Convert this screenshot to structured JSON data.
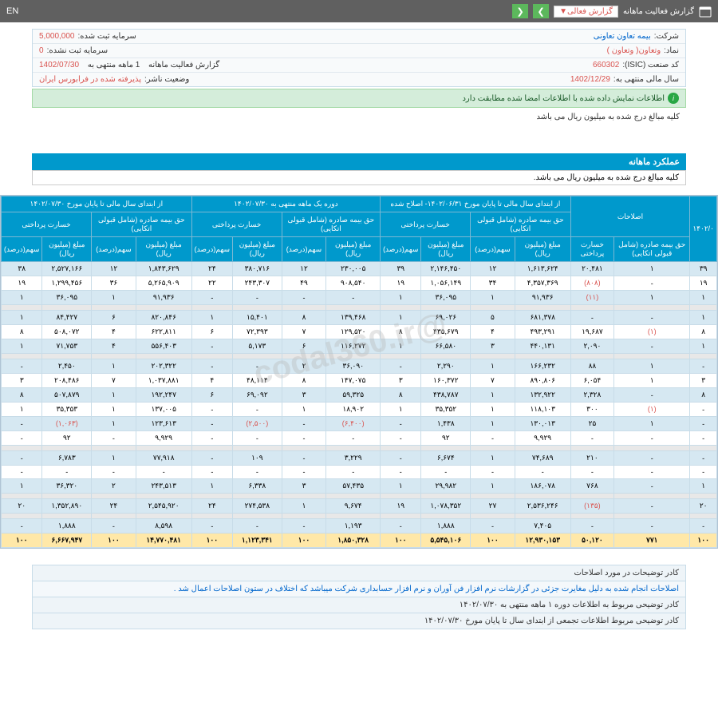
{
  "topbar": {
    "title": "گزارش فعالیت ماهانه",
    "dropdown": "گزارش فعالی▼",
    "lang": "EN"
  },
  "info": {
    "company_lbl": "شرکت:",
    "company": "بیمه تعاون تعاونی",
    "capital_reg_lbl": "سرمایه ثبت شده:",
    "capital_reg": "5,000,000",
    "symbol_lbl": "نماد:",
    "symbol": "وتعاون( وتعاون )",
    "capital_unreg_lbl": "سرمایه ثبت نشده:",
    "capital_unreg": "0",
    "isic_lbl": "کد صنعت (ISIC):",
    "isic": "660302",
    "report_lbl": "گزارش فعالیت ماهانه",
    "report_period": "1 ماهه منتهی به",
    "report_date": "1402/07/30",
    "fy_lbl": "سال مالی منتهی به:",
    "fy": "1402/12/29",
    "status_lbl": "وضعیت ناشر:",
    "status": "پذیرفته شده در فرابورس ایران"
  },
  "alert": "اطلاعات نمایش داده شده با اطلاعات امضا شده مطابقت دارد",
  "unit_note": "کلیه مبالغ درج شده به میلیون ریال می باشد",
  "section": "عملکرد ماهانه",
  "sub": "کلیه مبالغ درج شده به میلیون ریال می باشد.",
  "hdr_groups": {
    "g0": "۱۴۰۲/۰",
    "g1": "اصلاحات",
    "g2": "از ابتدای سال مالی تا پایان مورخ ۱۴۰۲/۰۶/۳۱- اصلاح شده",
    "g3": "دوره یک ماهه منتهی به ۱۴۰۲/۰۷/۳۰",
    "g4": "از ابتدای سال مالی تا پایان مورخ ۱۴۰۲/۰۷/۳۰"
  },
  "sub_hdr": {
    "h0": "اختی",
    "h1": "حق بیمه صادره (شامل قبولی اتکایی)",
    "h2": "خسارت پرداختی",
    "h3": "حق بیمه صادره (شامل قبولی اتکایی)",
    "h4": "خسارت پرداختی",
    "h5": "حق بیمه صادره (شامل قبولی اتکایی)",
    "h6": "خسارت پرداختی",
    "h7": "حق بیمه صادره (شامل قبولی اتکایی)",
    "h8": "خسارت پرداختی"
  },
  "col_hdr": {
    "pct": "سهم(درصد)",
    "amt": "مبلغ (میلیون ریال)"
  },
  "rows": [
    {
      "c": "odd",
      "v": [
        "۳۹",
        "۱",
        "۲۰,۴۸۱",
        "۱,۶۱۳,۶۲۴",
        "۱۲",
        "۲,۱۴۶,۴۵۰",
        "۳۹",
        "۲۳۰,۰۰۵",
        "۱۲",
        "۳۸۰,۷۱۶",
        "۲۴",
        "۱,۸۴۳,۶۲۹",
        "۱۲",
        "۲,۵۲۷,۱۶۶",
        "۳۸"
      ]
    },
    {
      "c": "even",
      "v": [
        "۱۹",
        "-",
        "(۸۰۸)",
        "۴,۳۵۷,۳۶۹",
        "۳۴",
        "۱,۰۵۶,۱۴۹",
        "۱۹",
        "۹۰۸,۵۴۰",
        "۴۹",
        "۲۴۳,۳۰۷",
        "۲۲",
        "۵,۲۶۵,۹۰۹",
        "۳۶",
        "۱,۲۹۹,۴۵۶",
        "۱۹"
      ]
    },
    {
      "c": "odd",
      "v": [
        "۱",
        "۱",
        "(۱۱)",
        "۹۱,۹۳۶",
        "۱",
        "۳۶,۰۹۵",
        "۱",
        "-",
        "-",
        "-",
        "-",
        "۹۱,۹۳۶",
        "۱",
        "۳۶,۰۹۵",
        "۱"
      ]
    },
    {
      "c": "grey",
      "v": [
        "",
        "",
        "",
        "",
        "",
        "",
        "",
        "",
        "",
        "",
        "",
        "",
        "",
        "",
        ""
      ]
    },
    {
      "c": "odd",
      "v": [
        "۱",
        "-",
        "-",
        "۶۸۱,۳۷۸",
        "۵",
        "۶۹,۰۲۶",
        "۱",
        "۱۳۹,۴۶۸",
        "۸",
        "۱۵,۴۰۱",
        "۱",
        "۸۲۰,۸۴۶",
        "۶",
        "۸۴,۴۲۷",
        "۱"
      ]
    },
    {
      "c": "even",
      "v": [
        "۸",
        "(۱)",
        "۱۹,۶۸۷",
        "۴۹۳,۲۹۱",
        "۴",
        "۴۳۵,۶۷۹",
        "۸",
        "۱۲۹,۵۲۰",
        "۷",
        "۷۲,۳۹۳",
        "۶",
        "۶۲۲,۸۱۱",
        "۴",
        "۵۰۸,۰۷۲",
        "۸"
      ]
    },
    {
      "c": "odd",
      "v": [
        "۱",
        "-",
        "۲,۰۹۰",
        "۴۴۰,۱۳۱",
        "۳",
        "۶۶,۵۸۰",
        "۱",
        "۱۱۶,۲۷۲",
        "۶",
        "۵,۱۷۳",
        "-",
        "۵۵۶,۴۰۳",
        "۴",
        "۷۱,۷۵۳",
        "۱"
      ]
    },
    {
      "c": "grey",
      "v": [
        "",
        "",
        "",
        "",
        "",
        "",
        "",
        "",
        "",
        "",
        "",
        "",
        "",
        "",
        ""
      ]
    },
    {
      "c": "odd",
      "v": [
        "-",
        "۱",
        "۸۸",
        "۱۶۶,۲۳۲",
        "۱",
        "۲,۲۹۰",
        "-",
        "۳۶,۰۹۰",
        "۲",
        "-",
        "-",
        "۲۰۲,۳۲۲",
        "۱",
        "۲,۴۵۰",
        "-"
      ]
    },
    {
      "c": "even",
      "v": [
        "۳",
        "۱",
        "۶,۰۵۴",
        "۸۹۰,۸۰۶",
        "۷",
        "۱۶۰,۳۷۲",
        "۳",
        "۱۴۷,۰۷۵",
        "۸",
        "۴۸,۱۱۴",
        "۴",
        "۱,۰۳۷,۸۸۱",
        "۷",
        "۲۰۸,۴۸۶",
        "۳"
      ]
    },
    {
      "c": "odd",
      "v": [
        "۸",
        "-",
        "۲,۳۲۸",
        "۱۳۲,۹۲۲",
        "۱",
        "۴۳۸,۷۸۷",
        "۸",
        "۵۹,۳۲۵",
        "۳",
        "۶۹,۰۹۲",
        "۶",
        "۱۹۲,۲۴۷",
        "۱",
        "۵۰۷,۸۷۹",
        "۸"
      ]
    },
    {
      "c": "even",
      "v": [
        "-",
        "(۱)",
        "۳۰۰",
        "۱۱۸,۱۰۳",
        "۱",
        "۳۵,۳۵۲",
        "۱",
        "۱۸,۹۰۲",
        "۱",
        "-",
        "-",
        "۱۳۷,۰۰۵",
        "۱",
        "۳۵,۳۵۳",
        "۱"
      ]
    },
    {
      "c": "odd",
      "v": [
        "-",
        "۱",
        "۲۵",
        "۱۳۰,۰۱۳",
        "۱",
        "۱,۴۳۸",
        "-",
        "(۶,۴۰۰)",
        "-",
        "(۲,۵۰۰)",
        "-",
        "۱۲۳,۶۱۳",
        "۱",
        "(۱,۰۶۳)",
        "-"
      ]
    },
    {
      "c": "even",
      "v": [
        "-",
        "-",
        "-",
        "۹,۹۲۹",
        "-",
        "۹۲",
        "-",
        "-",
        "-",
        "-",
        "-",
        "۹,۹۲۹",
        "-",
        "۹۲",
        "-"
      ]
    },
    {
      "c": "grey",
      "v": [
        "",
        "",
        "",
        "",
        "",
        "",
        "",
        "",
        "",
        "",
        "",
        "",
        "",
        "",
        ""
      ]
    },
    {
      "c": "odd",
      "v": [
        "-",
        "-",
        "۲۱۰",
        "۷۴,۶۸۹",
        "۱",
        "۶,۶۷۴",
        "-",
        "۳,۲۲۹",
        "-",
        "۱۰۹",
        "-",
        "۷۷,۹۱۸",
        "۱",
        "۶,۷۸۳",
        "-"
      ]
    },
    {
      "c": "even",
      "v": [
        "-",
        "-",
        "-",
        "-",
        "-",
        "-",
        "-",
        "-",
        "-",
        "-",
        "-",
        "-",
        "-",
        "-",
        "-"
      ]
    },
    {
      "c": "odd",
      "v": [
        "۱",
        "-",
        "۷۶۸",
        "۱۸۶,۰۷۸",
        "۱",
        "۲۹,۹۸۲",
        "۱",
        "۵۷,۴۳۵",
        "۳",
        "۶,۳۳۸",
        "۱",
        "۲۴۳,۵۱۳",
        "۲",
        "۳۶,۳۲۰",
        "۱"
      ]
    },
    {
      "c": "grey",
      "v": [
        "",
        "",
        "",
        "",
        "",
        "",
        "",
        "",
        "",
        "",
        "",
        "",
        "",
        "",
        ""
      ]
    },
    {
      "c": "odd",
      "v": [
        "۲۰",
        "-",
        "(۱۳۵)",
        "۲,۵۳۶,۲۴۶",
        "۲۷",
        "۱,۰۷۸,۳۵۲",
        "۱۹",
        "۹,۶۷۴",
        "۱",
        "۲۷۴,۵۳۸",
        "۲۴",
        "۲,۵۴۵,۹۲۰",
        "۲۴",
        "۱,۳۵۲,۸۹۰",
        "۲۰"
      ]
    },
    {
      "c": "grey",
      "v": [
        "",
        "",
        "",
        "",
        "",
        "",
        "",
        "",
        "",
        "",
        "",
        "",
        "",
        "",
        ""
      ]
    },
    {
      "c": "odd",
      "v": [
        "-",
        "-",
        "-",
        "۷,۴۰۵",
        "-",
        "۱,۸۸۸",
        "-",
        "۱,۱۹۳",
        "-",
        "-",
        "-",
        "۸,۵۹۸",
        "-",
        "۱,۸۸۸",
        "-"
      ]
    },
    {
      "c": "total",
      "v": [
        "۱۰۰",
        "۷۷۱",
        "۵۰,۱۲۰",
        "۱۲,۹۳۰,۱۵۳",
        "۱۰۰",
        "۵,۵۴۵,۱۰۶",
        "۱۰۰",
        "۱,۸۵۰,۳۲۸",
        "۱۰۰",
        "۱,۱۲۳,۳۴۱",
        "۱۰۰",
        "۱۴,۷۷۰,۴۸۱",
        "۱۰۰",
        "۶,۶۶۷,۹۴۷",
        "۱۰۰"
      ]
    }
  ],
  "footer": {
    "f1": "کادر توضیحات در مورد اصلاحات",
    "f2": "اصلاحات انجام شده به دلیل مغایرت جزئی در گزارشات نرم افزار فن آوران و نرم افزار حسابداری شرکت میباشد که اختلاف در ستون اصلاحات اعمال شد .",
    "f3": "کادر توضیحی مربوط به اطلاعات دوره ۱ ماهه منتهی به ۱۴۰۲/۰۷/۳۰",
    "f4": "کادر توضیحی مربوط اطلاعات تجمعی از ابتدای سال تا پایان مورخ ۱۴۰۲/۰۷/۳۰"
  },
  "watermark": "@codal360.ir"
}
